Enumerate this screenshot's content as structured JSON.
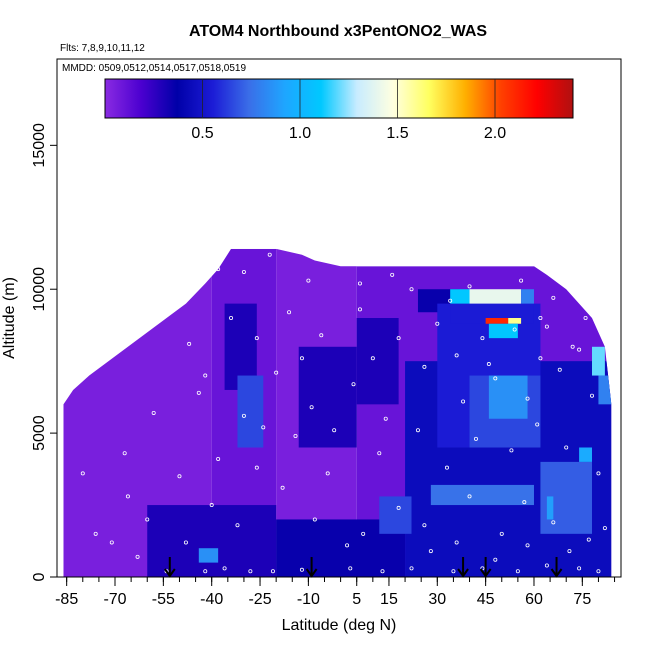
{
  "chart_data": {
    "type": "heatmap",
    "title": "ATOM4 Northbound x3PentONO2_WAS",
    "subtitle_flights": "Flts: 7,8,9,10,11,12",
    "subtitle_dates": "MMDD: 0509,0512,0514,0517,0518,0519",
    "xlabel": "Latitude (deg N)",
    "ylabel": "Altitude (m)",
    "xlim": [
      -88,
      87
    ],
    "ylim": [
      0,
      18000
    ],
    "x_ticks": [
      -85,
      -70,
      -55,
      -40,
      -25,
      -10,
      5,
      15,
      30,
      45,
      60,
      75
    ],
    "x_tick_labels": [
      "-85",
      "-70",
      "-55",
      "-40",
      "-25",
      "-10",
      "5",
      "15",
      "30",
      "45",
      "60",
      "75"
    ],
    "y_ticks": [
      0,
      5000,
      10000,
      15000
    ],
    "y_tick_labels": [
      "0",
      "5000",
      "10000",
      "15000"
    ],
    "colorbar": {
      "min": 0.0,
      "max": 2.4,
      "ticks": [
        0.5,
        1.0,
        1.5,
        2.0
      ],
      "tick_labels": [
        "0.5",
        "1.0",
        "1.5",
        "2.0"
      ],
      "colors": [
        "#8a2be2",
        "#4b00d0",
        "#0000a8",
        "#1c1cd6",
        "#3a6ee8",
        "#1ea6ff",
        "#00c8ff",
        "#c8ecff",
        "#ffffe0",
        "#ffff60",
        "#ffb000",
        "#ff4000",
        "#ff0000",
        "#b01010"
      ]
    },
    "arrows_latitude": [
      -53,
      -9,
      38,
      45,
      67
    ],
    "envelope": [
      [
        -86,
        6000
      ],
      [
        -83,
        6500
      ],
      [
        -78,
        7000
      ],
      [
        -72,
        7500
      ],
      [
        -66,
        8000
      ],
      [
        -60,
        8500
      ],
      [
        -54,
        9000
      ],
      [
        -48,
        9500
      ],
      [
        -42,
        10200
      ],
      [
        -38,
        10700
      ],
      [
        -34,
        11400
      ],
      [
        -20,
        11400
      ],
      [
        -12,
        11200
      ],
      [
        -8,
        11000
      ],
      [
        0,
        10800
      ],
      [
        20,
        10800
      ],
      [
        60,
        10800
      ],
      [
        64,
        10500
      ],
      [
        70,
        10000
      ],
      [
        74,
        9500
      ],
      [
        78,
        9000
      ],
      [
        82,
        8000
      ],
      [
        84,
        6000
      ]
    ],
    "field_cells": [
      {
        "lat": [
          -86,
          -40
        ],
        "alt": [
          0,
          11400
        ],
        "value": 0.05
      },
      {
        "lat": [
          -40,
          -20
        ],
        "alt": [
          0,
          11400
        ],
        "value": 0.1
      },
      {
        "lat": [
          -20,
          5
        ],
        "alt": [
          0,
          11400
        ],
        "value": 0.05
      },
      {
        "lat": [
          5,
          84
        ],
        "alt": [
          0,
          10800
        ],
        "value": 0.1
      },
      {
        "lat": [
          -60,
          -20
        ],
        "alt": [
          0,
          2500
        ],
        "value": 0.3
      },
      {
        "lat": [
          -20,
          20
        ],
        "alt": [
          0,
          2000
        ],
        "value": 0.35
      },
      {
        "lat": [
          20,
          84
        ],
        "alt": [
          0,
          7500
        ],
        "value": 0.45
      },
      {
        "lat": [
          -36,
          -26
        ],
        "alt": [
          6500,
          9500
        ],
        "value": 0.3
      },
      {
        "lat": [
          -32,
          -24
        ],
        "alt": [
          4500,
          7000
        ],
        "value": 0.65
      },
      {
        "lat": [
          -44,
          -38
        ],
        "alt": [
          500,
          1000
        ],
        "value": 0.85
      },
      {
        "lat": [
          -13,
          5
        ],
        "alt": [
          4500,
          8000
        ],
        "value": 0.3
      },
      {
        "lat": [
          5,
          18
        ],
        "alt": [
          6000,
          9000
        ],
        "value": 0.3
      },
      {
        "lat": [
          12,
          22
        ],
        "alt": [
          1500,
          2800
        ],
        "value": 0.65
      },
      {
        "lat": [
          24,
          37
        ],
        "alt": [
          9200,
          10000
        ],
        "value": 0.35
      },
      {
        "lat": [
          30,
          62
        ],
        "alt": [
          4500,
          9500
        ],
        "value": 0.55
      },
      {
        "lat": [
          40,
          62
        ],
        "alt": [
          4500,
          7000
        ],
        "value": 0.65
      },
      {
        "lat": [
          46,
          58
        ],
        "alt": [
          5500,
          7000
        ],
        "value": 0.85
      },
      {
        "lat": [
          28,
          60
        ],
        "alt": [
          2500,
          3200
        ],
        "value": 0.75
      },
      {
        "lat": [
          62,
          78
        ],
        "alt": [
          1500,
          4000
        ],
        "value": 0.7
      },
      {
        "lat": [
          64,
          66
        ],
        "alt": [
          2000,
          2800
        ],
        "value": 0.9
      },
      {
        "lat": [
          74,
          78
        ],
        "alt": [
          4000,
          4500
        ],
        "value": 0.95
      },
      {
        "lat": [
          34,
          60
        ],
        "alt": [
          8800,
          9500
        ],
        "value": 0.55
      },
      {
        "lat": [
          34,
          40
        ],
        "alt": [
          9500,
          10000
        ],
        "value": 1.1
      },
      {
        "lat": [
          40,
          56
        ],
        "alt": [
          9500,
          10000
        ],
        "value": 1.4
      },
      {
        "lat": [
          56,
          60
        ],
        "alt": [
          9500,
          10000
        ],
        "value": 0.8
      },
      {
        "lat": [
          45,
          52
        ],
        "alt": [
          8800,
          9000
        ],
        "value": 2.1
      },
      {
        "lat": [
          52,
          56
        ],
        "alt": [
          8800,
          9000
        ],
        "value": 1.6
      },
      {
        "lat": [
          46,
          55
        ],
        "alt": [
          8300,
          8800
        ],
        "value": 1.1
      },
      {
        "lat": [
          78,
          82
        ],
        "alt": [
          7000,
          8000
        ],
        "value": 1.2
      },
      {
        "lat": [
          80,
          84
        ],
        "alt": [
          6000,
          7000
        ],
        "value": 0.8
      }
    ],
    "sample_points": [
      [
        -54,
        200
      ],
      [
        -42,
        200
      ],
      [
        -36,
        300
      ],
      [
        -21,
        200
      ],
      [
        -12,
        250
      ],
      [
        3,
        300
      ],
      [
        13,
        200
      ],
      [
        22,
        300
      ],
      [
        35,
        200
      ],
      [
        44,
        300
      ],
      [
        55,
        200
      ],
      [
        64,
        400
      ],
      [
        74,
        300
      ],
      [
        80,
        200
      ],
      [
        -71,
        1200
      ],
      [
        -60,
        2000
      ],
      [
        -48,
        1200
      ],
      [
        -40,
        2500
      ],
      [
        -32,
        1800
      ],
      [
        -18,
        3100
      ],
      [
        -8,
        2000
      ],
      [
        7,
        1500
      ],
      [
        18,
        2400
      ],
      [
        28,
        900
      ],
      [
        40,
        2800
      ],
      [
        50,
        1500
      ],
      [
        57,
        2600
      ],
      [
        66,
        1900
      ],
      [
        77,
        1300
      ],
      [
        -80,
        3600
      ],
      [
        -67,
        4300
      ],
      [
        -50,
        3500
      ],
      [
        -38,
        4100
      ],
      [
        -26,
        3800
      ],
      [
        -14,
        4900
      ],
      [
        -4,
        3600
      ],
      [
        12,
        4300
      ],
      [
        24,
        5100
      ],
      [
        33,
        3800
      ],
      [
        42,
        4800
      ],
      [
        53,
        4400
      ],
      [
        61,
        5300
      ],
      [
        70,
        4500
      ],
      [
        80,
        3600
      ],
      [
        -58,
        5700
      ],
      [
        -44,
        6400
      ],
      [
        -30,
        5600
      ],
      [
        -20,
        7100
      ],
      [
        -9,
        5900
      ],
      [
        4,
        6700
      ],
      [
        14,
        5500
      ],
      [
        26,
        7300
      ],
      [
        38,
        6100
      ],
      [
        48,
        6900
      ],
      [
        58,
        6200
      ],
      [
        68,
        7200
      ],
      [
        78,
        6300
      ],
      [
        -47,
        8100
      ],
      [
        -34,
        9000
      ],
      [
        -26,
        8300
      ],
      [
        -16,
        9200
      ],
      [
        -6,
        8400
      ],
      [
        6,
        9300
      ],
      [
        18,
        8300
      ],
      [
        30,
        8800
      ],
      [
        44,
        8300
      ],
      [
        54,
        8600
      ],
      [
        64,
        8700
      ],
      [
        72,
        8000
      ],
      [
        -38,
        10700
      ],
      [
        -30,
        10600
      ],
      [
        -22,
        11200
      ],
      [
        -10,
        10300
      ],
      [
        6,
        10200
      ],
      [
        22,
        10000
      ],
      [
        40,
        10100
      ],
      [
        56,
        10300
      ],
      [
        66,
        9700
      ],
      [
        76,
        9000
      ],
      [
        -87,
        5000
      ],
      [
        -87,
        4200
      ],
      [
        -87,
        3000
      ],
      [
        -76,
        1500
      ],
      [
        -66,
        2800
      ],
      [
        -63,
        700
      ],
      [
        -28,
        200
      ],
      [
        2,
        1100
      ],
      [
        26,
        1800
      ],
      [
        36,
        1200
      ],
      [
        48,
        600
      ],
      [
        58,
        1100
      ],
      [
        71,
        900
      ],
      [
        82,
        1700
      ],
      [
        -24,
        5200
      ],
      [
        -2,
        5100
      ],
      [
        10,
        7600
      ],
      [
        36,
        7700
      ],
      [
        46,
        7400
      ],
      [
        62,
        7600
      ],
      [
        74,
        7900
      ],
      [
        -42,
        7000
      ],
      [
        -12,
        7600
      ],
      [
        16,
        10500
      ],
      [
        34,
        9600
      ],
      [
        62,
        9000
      ]
    ]
  }
}
